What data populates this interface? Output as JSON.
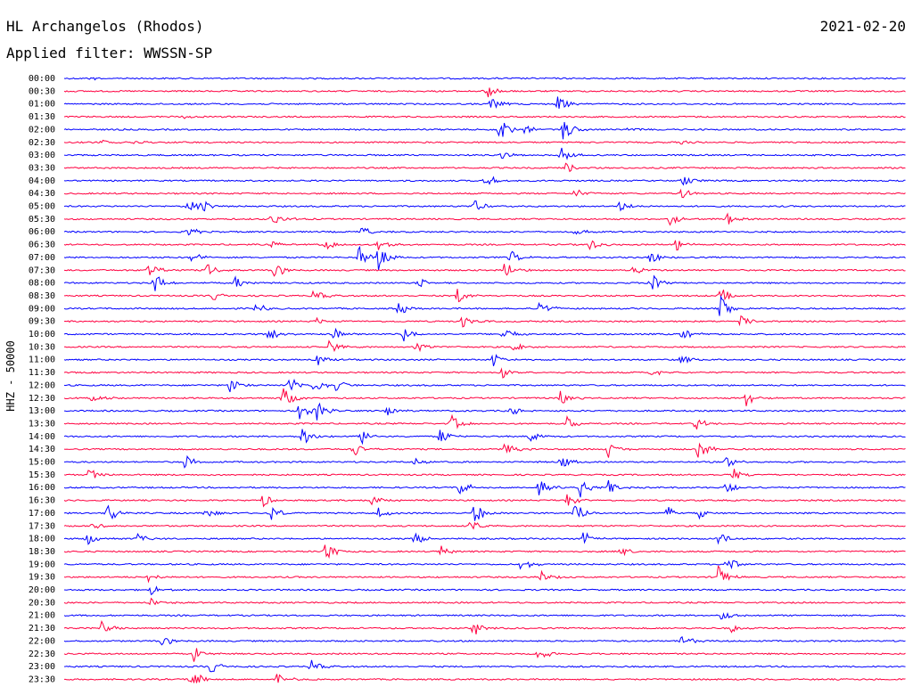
{
  "header": {
    "title": "HL Archangelos (Rhodos)",
    "date": "2021-02-20",
    "filter_label": "Applied filter: WWSSN-SP"
  },
  "colors": {
    "line_a": "#0000ff",
    "line_b": "#ff0040",
    "background": "#ffffff",
    "text": "#000000"
  },
  "chart_data": {
    "type": "line",
    "title": "HL Archangelos (Rhodos)",
    "ylabel": "HHZ - 50000",
    "xlabel": "",
    "categories": [
      "00:00",
      "00:30",
      "01:00",
      "01:30",
      "02:00",
      "02:30",
      "03:00",
      "03:30",
      "04:00",
      "04:30",
      "05:00",
      "05:30",
      "06:00",
      "06:30",
      "07:00",
      "07:30",
      "08:00",
      "08:30",
      "09:00",
      "09:30",
      "10:00",
      "10:30",
      "11:00",
      "11:30",
      "12:00",
      "12:30",
      "13:00",
      "13:30",
      "14:00",
      "14:30",
      "15:00",
      "15:30",
      "16:00",
      "16:30",
      "17:00",
      "17:30",
      "18:00",
      "18:30",
      "19:00",
      "19:30",
      "20:00",
      "20:30",
      "21:00",
      "21:30",
      "22:00",
      "22:30",
      "23:00",
      "23:30"
    ],
    "row_duration_min": 30,
    "grid": false,
    "colors_alternate": [
      "#0000ff",
      "#ff0040"
    ],
    "events": [
      {
        "row": 0,
        "t": 0.98,
        "amp": 0.12
      },
      {
        "row": 1,
        "t": 15.0,
        "amp": 0.8
      },
      {
        "row": 2,
        "t": 15.2,
        "amp": 0.5
      },
      {
        "row": 2,
        "t": 17.6,
        "amp": 0.6
      },
      {
        "row": 3,
        "t": 4.2,
        "amp": 0.15
      },
      {
        "row": 4,
        "t": 15.5,
        "amp": 0.9
      },
      {
        "row": 4,
        "t": 16.4,
        "amp": 0.35
      },
      {
        "row": 4,
        "t": 17.8,
        "amp": 0.9
      },
      {
        "row": 4,
        "t": 20.1,
        "amp": 0.2
      },
      {
        "row": 5,
        "t": 1.3,
        "amp": 0.2
      },
      {
        "row": 5,
        "t": 2.5,
        "amp": 0.15
      },
      {
        "row": 5,
        "t": 22.0,
        "amp": 0.15
      },
      {
        "row": 6,
        "t": 15.6,
        "amp": 0.3
      },
      {
        "row": 6,
        "t": 17.7,
        "amp": 0.6
      },
      {
        "row": 7,
        "t": 17.9,
        "amp": 0.5
      },
      {
        "row": 8,
        "t": 15.0,
        "amp": 0.6
      },
      {
        "row": 8,
        "t": 22.0,
        "amp": 0.4
      },
      {
        "row": 9,
        "t": 18.2,
        "amp": 0.4
      },
      {
        "row": 9,
        "t": 22.0,
        "amp": 0.4
      },
      {
        "row": 10,
        "t": 4.4,
        "amp": 0.6
      },
      {
        "row": 10,
        "t": 4.9,
        "amp": 0.5
      },
      {
        "row": 10,
        "t": 14.6,
        "amp": 0.5
      },
      {
        "row": 10,
        "t": 19.8,
        "amp": 0.4
      },
      {
        "row": 11,
        "t": 7.4,
        "amp": 0.6
      },
      {
        "row": 11,
        "t": 21.6,
        "amp": 0.5
      },
      {
        "row": 11,
        "t": 23.6,
        "amp": 0.5
      },
      {
        "row": 12,
        "t": 4.4,
        "amp": 0.4
      },
      {
        "row": 12,
        "t": 10.6,
        "amp": 0.4
      },
      {
        "row": 12,
        "t": 18.2,
        "amp": 0.3
      },
      {
        "row": 13,
        "t": 7.4,
        "amp": 0.3
      },
      {
        "row": 13,
        "t": 9.3,
        "amp": 0.4
      },
      {
        "row": 13,
        "t": 11.2,
        "amp": 0.5
      },
      {
        "row": 13,
        "t": 18.7,
        "amp": 0.5
      },
      {
        "row": 13,
        "t": 21.8,
        "amp": 0.5
      },
      {
        "row": 14,
        "t": 4.5,
        "amp": 0.5
      },
      {
        "row": 14,
        "t": 10.5,
        "amp": 0.8
      },
      {
        "row": 14,
        "t": 11.2,
        "amp": 0.9
      },
      {
        "row": 14,
        "t": 15.9,
        "amp": 0.5
      },
      {
        "row": 14,
        "t": 20.9,
        "amp": 0.5
      },
      {
        "row": 15,
        "t": 3.0,
        "amp": 0.6
      },
      {
        "row": 15,
        "t": 5.1,
        "amp": 0.5
      },
      {
        "row": 15,
        "t": 7.5,
        "amp": 0.6
      },
      {
        "row": 15,
        "t": 15.7,
        "amp": 0.6
      },
      {
        "row": 15,
        "t": 20.3,
        "amp": 0.4
      },
      {
        "row": 16,
        "t": 3.2,
        "amp": 0.8
      },
      {
        "row": 16,
        "t": 6.1,
        "amp": 0.5
      },
      {
        "row": 16,
        "t": 12.6,
        "amp": 0.5
      },
      {
        "row": 16,
        "t": 20.9,
        "amp": 0.8
      },
      {
        "row": 17,
        "t": 5.3,
        "amp": 0.4
      },
      {
        "row": 17,
        "t": 8.9,
        "amp": 0.5
      },
      {
        "row": 17,
        "t": 14.0,
        "amp": 0.6
      },
      {
        "row": 17,
        "t": 23.4,
        "amp": 0.6
      },
      {
        "row": 18,
        "t": 6.8,
        "amp": 0.5
      },
      {
        "row": 18,
        "t": 11.9,
        "amp": 0.5
      },
      {
        "row": 18,
        "t": 16.9,
        "amp": 0.8
      },
      {
        "row": 18,
        "t": 23.4,
        "amp": 0.9
      },
      {
        "row": 19,
        "t": 9.0,
        "amp": 0.3
      },
      {
        "row": 19,
        "t": 14.2,
        "amp": 0.5
      },
      {
        "row": 19,
        "t": 24.1,
        "amp": 0.4
      },
      {
        "row": 20,
        "t": 7.3,
        "amp": 0.6
      },
      {
        "row": 20,
        "t": 9.6,
        "amp": 0.5
      },
      {
        "row": 20,
        "t": 12.1,
        "amp": 0.6
      },
      {
        "row": 20,
        "t": 15.6,
        "amp": 0.6
      },
      {
        "row": 20,
        "t": 22.0,
        "amp": 0.6
      },
      {
        "row": 21,
        "t": 9.4,
        "amp": 0.6
      },
      {
        "row": 21,
        "t": 12.5,
        "amp": 0.5
      },
      {
        "row": 21,
        "t": 16.0,
        "amp": 0.4
      },
      {
        "row": 22,
        "t": 9.0,
        "amp": 0.6
      },
      {
        "row": 22,
        "t": 15.3,
        "amp": 0.5
      },
      {
        "row": 22,
        "t": 22.0,
        "amp": 0.4
      },
      {
        "row": 23,
        "t": 15.6,
        "amp": 0.5
      },
      {
        "row": 23,
        "t": 20.9,
        "amp": 0.3
      },
      {
        "row": 24,
        "t": 5.9,
        "amp": 0.6
      },
      {
        "row": 24,
        "t": 8.0,
        "amp": 0.7
      },
      {
        "row": 24,
        "t": 8.9,
        "amp": 0.6
      },
      {
        "row": 24,
        "t": 9.7,
        "amp": 0.5
      },
      {
        "row": 25,
        "t": 1.0,
        "amp": 0.4
      },
      {
        "row": 25,
        "t": 7.8,
        "amp": 0.8
      },
      {
        "row": 25,
        "t": 17.7,
        "amp": 0.6
      },
      {
        "row": 25,
        "t": 24.3,
        "amp": 0.6
      },
      {
        "row": 26,
        "t": 8.4,
        "amp": 0.8
      },
      {
        "row": 26,
        "t": 9.0,
        "amp": 0.7
      },
      {
        "row": 26,
        "t": 11.5,
        "amp": 0.5
      },
      {
        "row": 26,
        "t": 15.9,
        "amp": 0.4
      },
      {
        "row": 27,
        "t": 13.8,
        "amp": 0.6
      },
      {
        "row": 27,
        "t": 17.9,
        "amp": 0.5
      },
      {
        "row": 27,
        "t": 22.5,
        "amp": 0.5
      },
      {
        "row": 28,
        "t": 8.5,
        "amp": 0.8
      },
      {
        "row": 28,
        "t": 10.6,
        "amp": 0.6
      },
      {
        "row": 28,
        "t": 13.4,
        "amp": 0.6
      },
      {
        "row": 28,
        "t": 16.6,
        "amp": 0.5
      },
      {
        "row": 29,
        "t": 10.3,
        "amp": 0.6
      },
      {
        "row": 29,
        "t": 15.7,
        "amp": 0.5
      },
      {
        "row": 29,
        "t": 19.4,
        "amp": 0.6
      },
      {
        "row": 29,
        "t": 22.6,
        "amp": 0.8
      },
      {
        "row": 30,
        "t": 4.3,
        "amp": 0.5
      },
      {
        "row": 30,
        "t": 12.5,
        "amp": 0.4
      },
      {
        "row": 30,
        "t": 17.7,
        "amp": 0.5
      },
      {
        "row": 30,
        "t": 23.6,
        "amp": 0.5
      },
      {
        "row": 31,
        "t": 0.9,
        "amp": 0.5
      },
      {
        "row": 31,
        "t": 23.8,
        "amp": 0.5
      },
      {
        "row": 32,
        "t": 14.1,
        "amp": 0.6
      },
      {
        "row": 32,
        "t": 16.9,
        "amp": 0.6
      },
      {
        "row": 32,
        "t": 18.4,
        "amp": 0.7
      },
      {
        "row": 32,
        "t": 19.4,
        "amp": 0.5
      },
      {
        "row": 32,
        "t": 23.6,
        "amp": 0.5
      },
      {
        "row": 33,
        "t": 7.1,
        "amp": 0.5
      },
      {
        "row": 33,
        "t": 10.9,
        "amp": 0.5
      },
      {
        "row": 33,
        "t": 17.9,
        "amp": 0.5
      },
      {
        "row": 34,
        "t": 1.5,
        "amp": 0.9
      },
      {
        "row": 34,
        "t": 5.0,
        "amp": 0.5
      },
      {
        "row": 34,
        "t": 7.4,
        "amp": 0.6
      },
      {
        "row": 34,
        "t": 11.2,
        "amp": 0.4
      },
      {
        "row": 34,
        "t": 14.6,
        "amp": 0.9
      },
      {
        "row": 34,
        "t": 18.2,
        "amp": 0.8
      },
      {
        "row": 34,
        "t": 21.5,
        "amp": 0.5
      },
      {
        "row": 34,
        "t": 22.6,
        "amp": 0.4
      },
      {
        "row": 35,
        "t": 1.0,
        "amp": 0.3
      },
      {
        "row": 35,
        "t": 14.5,
        "amp": 0.5
      },
      {
        "row": 36,
        "t": 0.8,
        "amp": 0.5
      },
      {
        "row": 36,
        "t": 2.6,
        "amp": 0.4
      },
      {
        "row": 36,
        "t": 12.5,
        "amp": 0.5
      },
      {
        "row": 36,
        "t": 18.5,
        "amp": 0.5
      },
      {
        "row": 36,
        "t": 23.3,
        "amp": 0.6
      },
      {
        "row": 37,
        "t": 9.3,
        "amp": 0.8
      },
      {
        "row": 37,
        "t": 13.4,
        "amp": 0.5
      },
      {
        "row": 37,
        "t": 19.8,
        "amp": 0.4
      },
      {
        "row": 38,
        "t": 16.3,
        "amp": 0.5
      },
      {
        "row": 38,
        "t": 23.5,
        "amp": 0.9
      },
      {
        "row": 39,
        "t": 3.0,
        "amp": 0.4
      },
      {
        "row": 39,
        "t": 17.0,
        "amp": 0.5
      },
      {
        "row": 39,
        "t": 23.3,
        "amp": 0.9
      },
      {
        "row": 40,
        "t": 3.1,
        "amp": 0.4
      },
      {
        "row": 41,
        "t": 3.1,
        "amp": 0.3
      },
      {
        "row": 42,
        "t": 23.4,
        "amp": 0.5
      },
      {
        "row": 43,
        "t": 1.3,
        "amp": 0.6
      },
      {
        "row": 43,
        "t": 14.6,
        "amp": 0.6
      },
      {
        "row": 43,
        "t": 23.8,
        "amp": 0.3
      },
      {
        "row": 44,
        "t": 3.5,
        "amp": 0.4
      },
      {
        "row": 44,
        "t": 22.0,
        "amp": 0.5
      },
      {
        "row": 45,
        "t": 4.6,
        "amp": 0.6
      },
      {
        "row": 45,
        "t": 16.9,
        "amp": 0.5
      },
      {
        "row": 46,
        "t": 5.2,
        "amp": 0.6
      },
      {
        "row": 46,
        "t": 8.8,
        "amp": 0.5
      },
      {
        "row": 47,
        "t": 4.5,
        "amp": 0.9
      },
      {
        "row": 47,
        "t": 7.6,
        "amp": 0.5
      }
    ]
  }
}
